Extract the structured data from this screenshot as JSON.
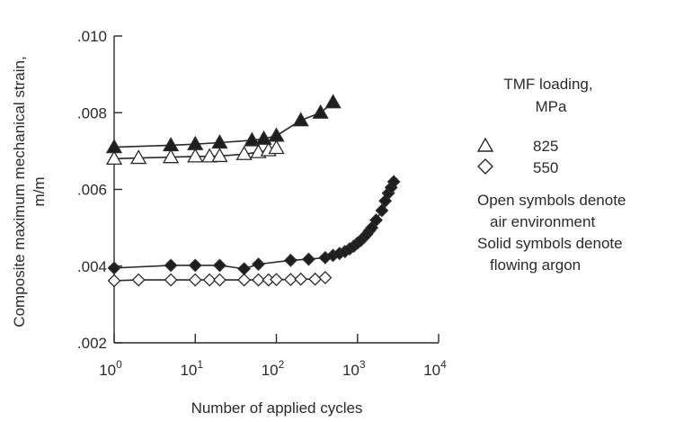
{
  "chart_data": {
    "type": "scatter",
    "title": "",
    "xlabel": "Number of applied cycles",
    "ylabel_line1": "Composite maximum mechanical strain,",
    "ylabel_line2": "m/m",
    "x_scale": "log",
    "xlim": [
      1,
      10000
    ],
    "ylim": [
      0.002,
      0.01
    ],
    "grid": false,
    "x_ticks": [
      {
        "value": 1,
        "base": "10",
        "exp": "0"
      },
      {
        "value": 10,
        "base": "10",
        "exp": "1"
      },
      {
        "value": 100,
        "base": "10",
        "exp": "2"
      },
      {
        "value": 1000,
        "base": "10",
        "exp": "3"
      },
      {
        "value": 10000,
        "base": "10",
        "exp": "4"
      }
    ],
    "y_ticks": [
      {
        "value": 0.002,
        "label": ".002"
      },
      {
        "value": 0.004,
        "label": ".004"
      },
      {
        "value": 0.006,
        "label": ".006"
      },
      {
        "value": 0.008,
        "label": ".008"
      },
      {
        "value": 0.01,
        "label": ".010"
      }
    ],
    "legend": {
      "position": "right",
      "title_line1": "TMF loading,",
      "title_line2": "MPa",
      "entries": [
        {
          "marker": "triangle",
          "label": "825"
        },
        {
          "marker": "diamond",
          "label": "550"
        }
      ],
      "notes": [
        "Open symbols denote",
        "air environment",
        "Solid symbols denote",
        "flowing argon"
      ]
    },
    "series": [
      {
        "label": "825 open",
        "marker": "triangle",
        "filled": false,
        "x": [
          1,
          2,
          5,
          10,
          15,
          20,
          40,
          60,
          80,
          100
        ],
        "y": [
          0.0068,
          0.00682,
          0.00684,
          0.00686,
          0.00686,
          0.00687,
          0.00692,
          0.00697,
          0.00702,
          0.00708
        ]
      },
      {
        "label": "825 solid",
        "marker": "triangle",
        "filled": true,
        "x": [
          1,
          5,
          10,
          20,
          50,
          70,
          100,
          200,
          350,
          500
        ],
        "y": [
          0.0071,
          0.00715,
          0.00718,
          0.00722,
          0.00728,
          0.00732,
          0.0074,
          0.0078,
          0.008,
          0.00827
        ]
      },
      {
        "label": "550 open",
        "marker": "diamond",
        "filled": false,
        "x": [
          1,
          2,
          5,
          10,
          15,
          20,
          40,
          60,
          80,
          100,
          150,
          200,
          300,
          400
        ],
        "y": [
          0.00362,
          0.00364,
          0.00364,
          0.00364,
          0.00364,
          0.00364,
          0.00364,
          0.00364,
          0.00364,
          0.00365,
          0.00365,
          0.00366,
          0.00366,
          0.0037
        ]
      },
      {
        "label": "550 solid",
        "marker": "diamond",
        "filled": true,
        "x": [
          1,
          5,
          10,
          20,
          40,
          60,
          150,
          250,
          400,
          500,
          600,
          700,
          800,
          900,
          1000,
          1100,
          1200,
          1300,
          1400,
          1500,
          1700,
          2000,
          2200,
          2400,
          2600,
          2800
        ],
        "y": [
          0.00395,
          0.00402,
          0.00402,
          0.00402,
          0.00393,
          0.00405,
          0.00415,
          0.00418,
          0.00422,
          0.00428,
          0.00433,
          0.00438,
          0.00445,
          0.00452,
          0.0046,
          0.00467,
          0.00475,
          0.00483,
          0.00492,
          0.005,
          0.0052,
          0.00545,
          0.0057,
          0.0059,
          0.00605,
          0.0062
        ]
      }
    ]
  }
}
